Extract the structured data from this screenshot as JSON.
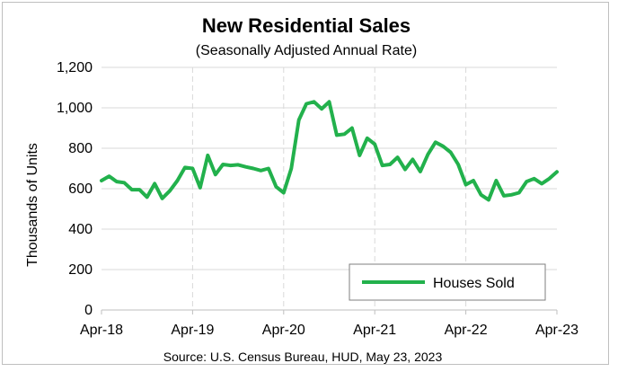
{
  "chart_data": {
    "type": "line",
    "title": "New Residential Sales",
    "subtitle": "(Seasonally Adjusted Annual Rate)",
    "ylabel": "Thousands of Units",
    "xlabel": "",
    "ylim": [
      0,
      1200
    ],
    "yticks": [
      "0",
      "200",
      "400",
      "600",
      "800",
      "1,000",
      "1,200"
    ],
    "ytick_values": [
      0,
      200,
      400,
      600,
      800,
      1000,
      1200
    ],
    "xticks": [
      "Apr-18",
      "Apr-19",
      "Apr-20",
      "Apr-21",
      "Apr-22",
      "Apr-23"
    ],
    "xtick_indices": [
      0,
      12,
      24,
      36,
      48,
      60
    ],
    "grid": "horizontal",
    "legend_position": "bottom-right",
    "series": [
      {
        "name": "Houses Sold",
        "color": "#22b14c",
        "values": [
          640,
          662,
          635,
          630,
          595,
          595,
          558,
          625,
          552,
          590,
          640,
          705,
          700,
          605,
          765,
          670,
          720,
          715,
          718,
          708,
          700,
          690,
          700,
          610,
          580,
          700,
          940,
          1020,
          1030,
          995,
          1030,
          865,
          870,
          900,
          765,
          850,
          820,
          715,
          720,
          755,
          695,
          745,
          685,
          770,
          830,
          810,
          780,
          720,
          620,
          640,
          570,
          545,
          640,
          565,
          570,
          580,
          635,
          650,
          625,
          650,
          683
        ]
      }
    ]
  },
  "source": "Source:  U.S. Census Bureau, HUD, May 23, 2023"
}
